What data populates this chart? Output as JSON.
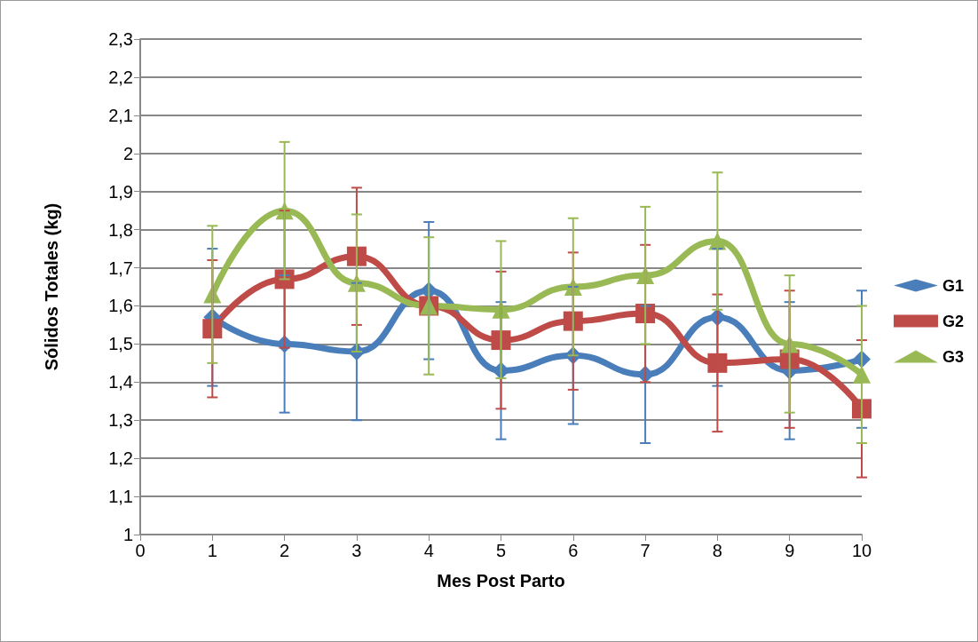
{
  "chart_data": {
    "type": "line",
    "xlabel": "Mes Post Parto",
    "ylabel": "Sólidos Totales (kg)",
    "x": [
      1,
      2,
      3,
      4,
      5,
      6,
      7,
      8,
      9,
      10
    ],
    "series": [
      {
        "name": "G1",
        "color": "#4a7ebb",
        "marker": "diamond",
        "values": [
          1.57,
          1.5,
          1.48,
          1.64,
          1.43,
          1.47,
          1.42,
          1.57,
          1.43,
          1.46
        ],
        "errors": [
          0.18,
          0.18,
          0.18,
          0.18,
          0.18,
          0.18,
          0.18,
          0.18,
          0.18,
          0.18
        ]
      },
      {
        "name": "G2",
        "color": "#be4b48",
        "marker": "square",
        "values": [
          1.54,
          1.67,
          1.73,
          1.6,
          1.51,
          1.56,
          1.58,
          1.45,
          1.46,
          1.33
        ],
        "errors": [
          0.18,
          0.18,
          0.18,
          null,
          0.18,
          0.18,
          0.18,
          0.18,
          0.18,
          0.18
        ]
      },
      {
        "name": "G3",
        "color": "#98b954",
        "marker": "triangle",
        "values": [
          1.63,
          1.85,
          1.66,
          1.6,
          1.59,
          1.65,
          1.68,
          1.77,
          1.5,
          1.42
        ],
        "errors": [
          0.18,
          0.18,
          0.18,
          0.18,
          0.18,
          0.18,
          0.18,
          0.18,
          0.18,
          0.18
        ]
      }
    ],
    "xlim": [
      0,
      10
    ],
    "xticks": [
      0,
      1,
      2,
      3,
      4,
      5,
      6,
      7,
      8,
      9,
      10
    ],
    "ylim": [
      1,
      2.3
    ],
    "yticks": [
      1,
      {
        "value": 1.1,
        "label": "1,1"
      },
      {
        "value": 1.2,
        "label": "1,2"
      },
      {
        "value": 1.3,
        "label": "1,3"
      },
      {
        "value": 1.4,
        "label": "1,4"
      },
      {
        "value": 1.5,
        "label": "1,5"
      },
      {
        "value": 1.6,
        "label": "1,6"
      },
      {
        "value": 1.7,
        "label": "1,7"
      },
      {
        "value": 1.8,
        "label": "1,8"
      },
      {
        "value": 1.9,
        "label": "1,9"
      },
      2,
      {
        "value": 2.1,
        "label": "2,1"
      },
      {
        "value": 2.2,
        "label": "2,2"
      },
      {
        "value": 2.3,
        "label": "2,3"
      }
    ],
    "grid": "y",
    "legend": "right",
    "line_style": "solid"
  }
}
